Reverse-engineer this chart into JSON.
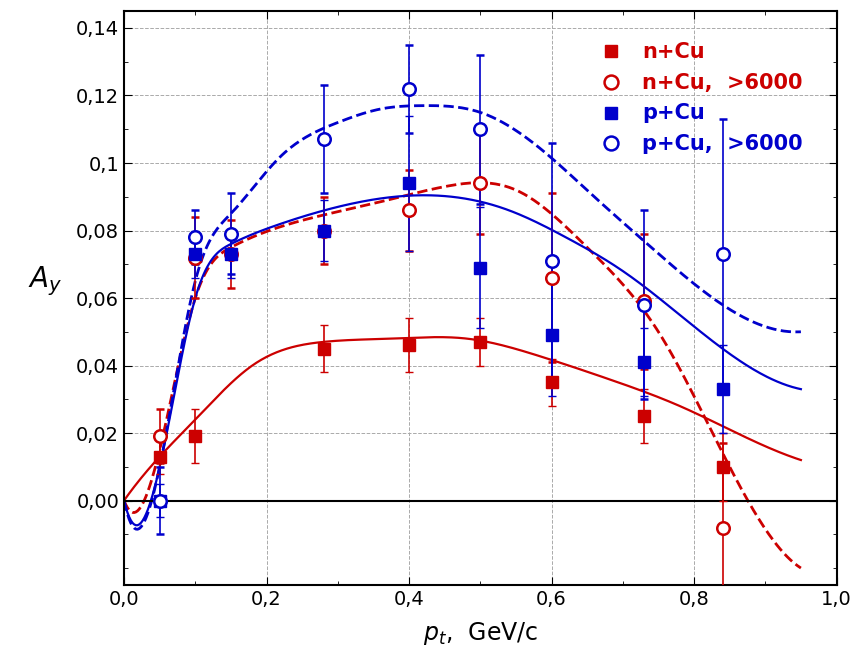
{
  "title": "",
  "xlabel": "p_t,  GeV/c",
  "ylabel": "A_y",
  "xlim": [
    0.0,
    1.0
  ],
  "ylim": [
    -0.025,
    0.145
  ],
  "yticks": [
    0.0,
    0.02,
    0.04,
    0.06,
    0.08,
    0.1,
    0.12,
    0.14
  ],
  "xticks": [
    0.0,
    0.2,
    0.4,
    0.6,
    0.8,
    1.0
  ],
  "background_color": "#ffffff",
  "nCu_x": [
    0.05,
    0.1,
    0.28,
    0.4,
    0.5,
    0.6,
    0.73,
    0.84
  ],
  "nCu_y": [
    0.013,
    0.019,
    0.045,
    0.046,
    0.047,
    0.035,
    0.025,
    0.01
  ],
  "nCu_yerr": [
    0.005,
    0.008,
    0.007,
    0.008,
    0.007,
    0.007,
    0.008,
    0.01
  ],
  "nCu6000_x": [
    0.05,
    0.1,
    0.15,
    0.28,
    0.4,
    0.5,
    0.6,
    0.73,
    0.84
  ],
  "nCu6000_y": [
    0.019,
    0.072,
    0.073,
    0.08,
    0.086,
    0.094,
    0.066,
    0.059,
    -0.008
  ],
  "nCu6000_yerr": [
    0.008,
    0.012,
    0.01,
    0.01,
    0.012,
    0.015,
    0.025,
    0.02,
    0.025
  ],
  "pCu_x": [
    0.05,
    0.1,
    0.15,
    0.28,
    0.4,
    0.5,
    0.6,
    0.73,
    0.84
  ],
  "pCu_y": [
    0.0,
    0.073,
    0.073,
    0.08,
    0.094,
    0.069,
    0.049,
    0.041,
    0.033
  ],
  "pCu_yerr": [
    0.005,
    0.007,
    0.007,
    0.009,
    0.02,
    0.018,
    0.018,
    0.01,
    0.013
  ],
  "pCu6000_x": [
    0.05,
    0.1,
    0.15,
    0.28,
    0.4,
    0.5,
    0.6,
    0.73,
    0.84
  ],
  "pCu6000_y": [
    0.0,
    0.078,
    0.079,
    0.107,
    0.122,
    0.11,
    0.071,
    0.058,
    0.073
  ],
  "pCu6000_yerr": [
    0.01,
    0.008,
    0.012,
    0.016,
    0.013,
    0.022,
    0.035,
    0.028,
    0.04
  ],
  "nCu_curve_x": [
    0.0,
    0.05,
    0.1,
    0.18,
    0.28,
    0.38,
    0.48,
    0.58,
    0.68,
    0.78,
    0.88,
    0.95
  ],
  "nCu_curve_y": [
    0.0,
    0.013,
    0.024,
    0.04,
    0.047,
    0.048,
    0.048,
    0.043,
    0.036,
    0.028,
    0.018,
    0.012
  ],
  "nCu6000_curve_x": [
    0.0,
    0.05,
    0.1,
    0.15,
    0.25,
    0.35,
    0.45,
    0.55,
    0.65,
    0.75,
    0.85,
    0.95
  ],
  "nCu6000_curve_y": [
    0.0,
    0.015,
    0.06,
    0.075,
    0.083,
    0.088,
    0.093,
    0.092,
    0.075,
    0.05,
    0.01,
    -0.02
  ],
  "pCu_curve_x": [
    0.0,
    0.05,
    0.1,
    0.15,
    0.22,
    0.3,
    0.38,
    0.46,
    0.54,
    0.62,
    0.7,
    0.78,
    0.86,
    0.95
  ],
  "pCu_curve_y": [
    0.0,
    0.01,
    0.06,
    0.076,
    0.082,
    0.087,
    0.09,
    0.09,
    0.086,
    0.078,
    0.068,
    0.055,
    0.042,
    0.033
  ],
  "pCu6000_curve_x": [
    0.0,
    0.05,
    0.1,
    0.15,
    0.22,
    0.3,
    0.36,
    0.42,
    0.5,
    0.58,
    0.66,
    0.74,
    0.84,
    0.95
  ],
  "pCu6000_curve_y": [
    0.0,
    0.01,
    0.065,
    0.085,
    0.102,
    0.112,
    0.116,
    0.117,
    0.115,
    0.105,
    0.09,
    0.075,
    0.058,
    0.05
  ],
  "red": "#cc0000",
  "blue": "#0000cc",
  "legend_labels": [
    "n+Cu",
    "n+Cu,  >6000",
    "p+Cu",
    "p+Cu,  >6000"
  ]
}
